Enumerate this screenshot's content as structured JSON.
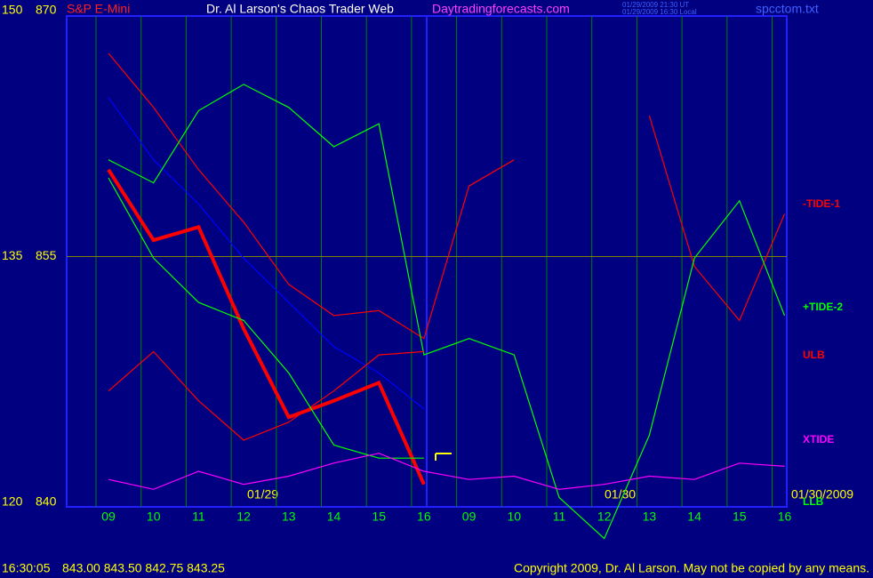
{
  "chart_data": {
    "type": "line",
    "symbol": "S&P E-Mini",
    "title": "Dr. Al Larson's Chaos Trader Web",
    "site": "Daytradingforecasts.com",
    "timestamps": [
      "01/29/2009 21:30 UT",
      "01/29/2009 16:30 Local"
    ],
    "file": "spcctom.txt",
    "date_labels": [
      "01/29",
      "01/30",
      "01/30/2009"
    ],
    "footer": {
      "time": "16:30:05",
      "quote": "843.00 843.50 842.75 843.25",
      "copyright": "Copyright 2009, Dr. Al Larson. May not be copied by any means."
    },
    "categories": [
      "09",
      "10",
      "11",
      "12",
      "13",
      "14",
      "15",
      "16",
      "09",
      "10",
      "11",
      "12",
      "13",
      "14",
      "15",
      "16"
    ],
    "ylim": [
      840,
      870
    ],
    "yticks": [
      840,
      855,
      870
    ],
    "y2lim": [
      120,
      150
    ],
    "y2ticks": [
      120,
      135,
      150
    ],
    "series": [
      {
        "color": "#ff0000",
        "values": [
          860.3,
          856.0,
          856.8,
          850.6,
          845.2,
          846.2,
          847.3,
          841.1,
          null,
          null,
          null,
          null,
          null,
          null,
          null,
          null
        ]
      },
      {
        "color": "#0000ff",
        "values": [
          864.7,
          860.9,
          858.2,
          854.9,
          852.2,
          849.5,
          847.9,
          845.7,
          null,
          null,
          null,
          null,
          null,
          null,
          null,
          null
        ]
      },
      {
        "name": "-TIDE-1",
        "color": "#ff0000",
        "values": [
          867.4,
          864.1,
          860.3,
          857.1,
          853.3,
          851.4,
          851.7,
          850.0,
          859.3,
          860.9,
          null,
          null,
          863.6,
          854.4,
          851.1,
          857.6
        ]
      },
      {
        "name": "+TIDE-2",
        "color": "#00ff00",
        "values": [
          860.9,
          859.5,
          863.9,
          865.5,
          864.1,
          861.7,
          863.1,
          849.0,
          850.0,
          849.0,
          840.3,
          837.8,
          844.1,
          854.9,
          858.4,
          851.4
        ]
      },
      {
        "name": "ULB",
        "color": "#ff0000",
        "values": [
          846.8,
          849.2,
          846.2,
          843.8,
          844.9,
          846.8,
          849.0,
          849.2,
          null,
          null,
          null,
          null,
          null,
          null,
          null,
          null
        ]
      },
      {
        "name": "LLB",
        "color": "#00ff00",
        "values": [
          859.8,
          854.9,
          852.2,
          851.1,
          847.9,
          843.5,
          842.7,
          842.7,
          null,
          null,
          null,
          null,
          null,
          null,
          null,
          null
        ]
      },
      {
        "name": "XTIDE",
        "color": "#ff00ff",
        "values": [
          841.4,
          840.8,
          841.9,
          841.1,
          841.6,
          842.4,
          843.0,
          841.9,
          841.4,
          841.6,
          840.8,
          841.1,
          841.6,
          841.4,
          842.4,
          842.2
        ]
      }
    ]
  }
}
